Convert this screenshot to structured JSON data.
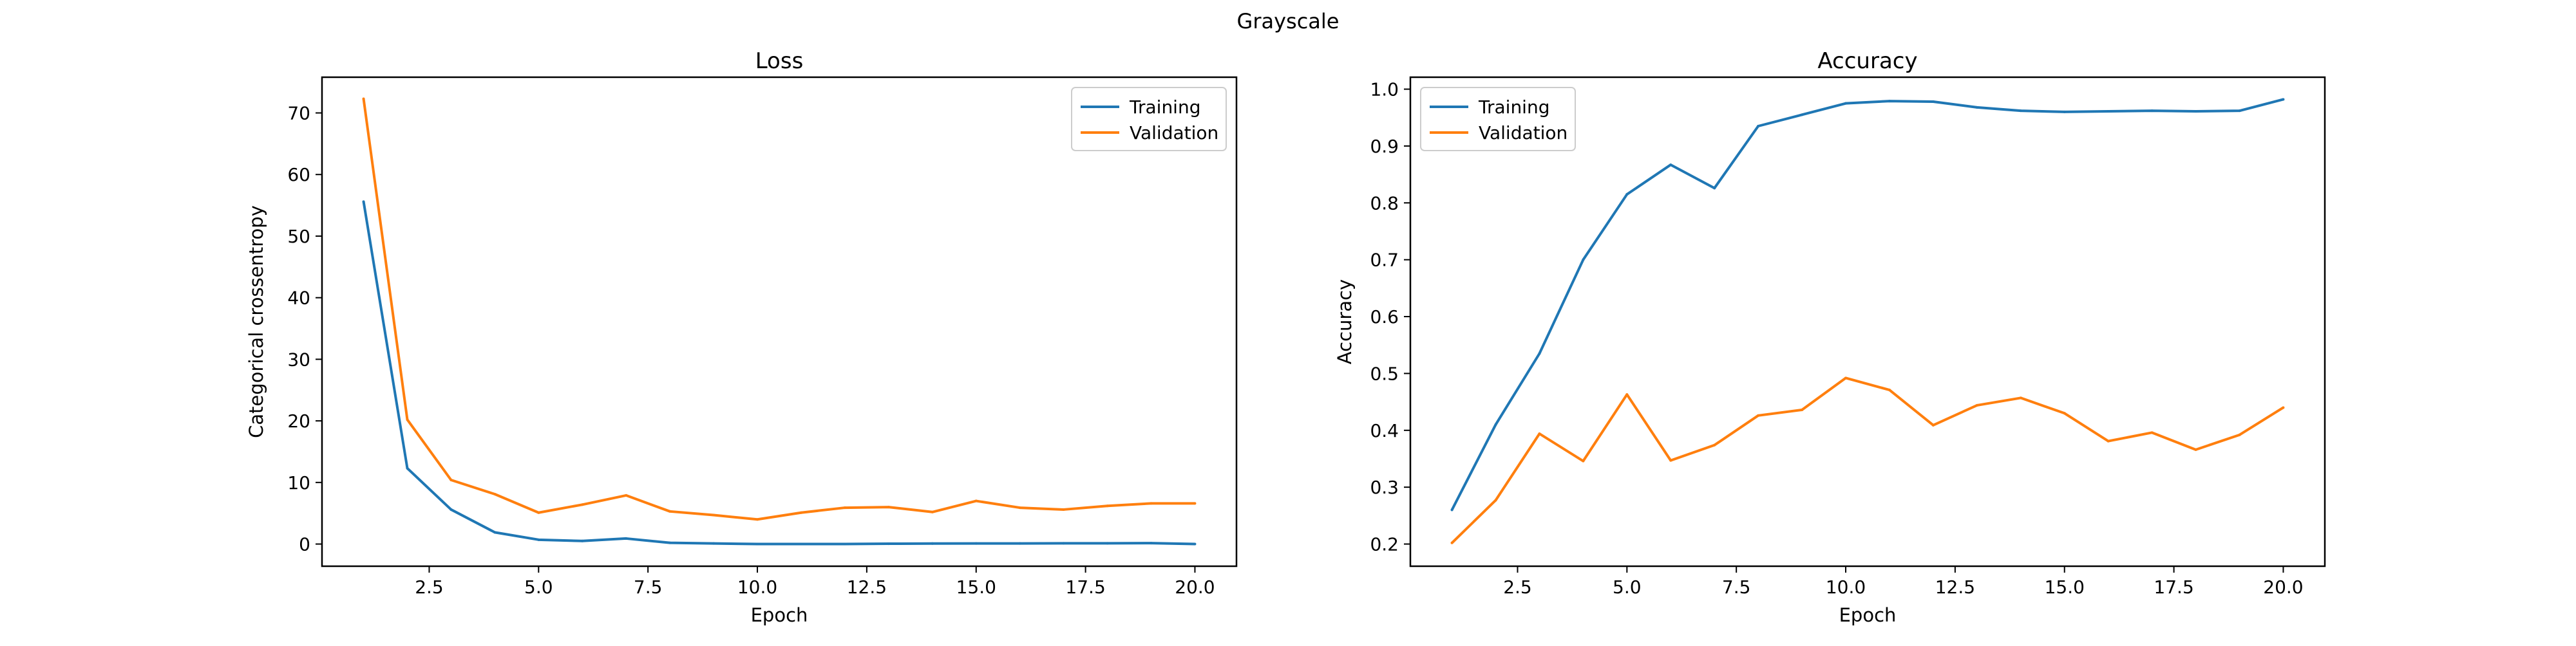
{
  "figure": {
    "title": "Grayscale"
  },
  "chart_data": [
    {
      "type": "line",
      "title": "Loss",
      "xlabel": "Epoch",
      "ylabel": "Categorical crossentropy",
      "xlim": [
        0.05,
        20.95
      ],
      "ylim": [
        -3.6,
        75.8
      ],
      "xticks": [
        2.5,
        5.0,
        7.5,
        10.0,
        12.5,
        15.0,
        17.5,
        20.0
      ],
      "yticks": [
        0,
        10,
        20,
        30,
        40,
        50,
        60,
        70
      ],
      "ytick_labels": [
        "0",
        "10",
        "20",
        "30",
        "40",
        "50",
        "60",
        "70"
      ],
      "grid": false,
      "legend": "top-right",
      "x": [
        1,
        2,
        3,
        4,
        5,
        6,
        7,
        8,
        9,
        10,
        11,
        12,
        13,
        14,
        15,
        16,
        17,
        18,
        19,
        20
      ],
      "series": [
        {
          "name": "Training",
          "color": "#1f77b4",
          "values": [
            55.6,
            12.3,
            5.6,
            1.9,
            0.7,
            0.5,
            0.9,
            0.2,
            0.1,
            0.0,
            0.0,
            0.0,
            0.05,
            0.08,
            0.1,
            0.1,
            0.12,
            0.12,
            0.15,
            0.0
          ]
        },
        {
          "name": "Validation",
          "color": "#ff7f0e",
          "values": [
            72.3,
            20.2,
            10.4,
            8.1,
            5.1,
            6.4,
            7.9,
            5.3,
            4.7,
            4.0,
            5.1,
            5.9,
            6.0,
            5.2,
            7.0,
            5.9,
            5.6,
            6.2,
            6.6,
            6.6
          ]
        }
      ]
    },
    {
      "type": "line",
      "title": "Accuracy",
      "xlabel": "Epoch",
      "ylabel": "Accuracy",
      "xlim": [
        0.05,
        20.95
      ],
      "ylim": [
        0.161,
        1.021
      ],
      "xticks": [
        2.5,
        5.0,
        7.5,
        10.0,
        12.5,
        15.0,
        17.5,
        20.0
      ],
      "yticks": [
        0.2,
        0.3,
        0.4,
        0.5,
        0.6,
        0.7,
        0.8,
        0.9,
        1.0
      ],
      "ytick_labels": [
        "0.2",
        "0.3",
        "0.4",
        "0.5",
        "0.6",
        "0.7",
        "0.8",
        "0.9",
        "1.0"
      ],
      "grid": false,
      "legend": "top-left",
      "x": [
        1,
        2,
        3,
        4,
        5,
        6,
        7,
        8,
        9,
        10,
        11,
        12,
        13,
        14,
        15,
        16,
        17,
        18,
        19,
        20
      ],
      "series": [
        {
          "name": "Training",
          "color": "#1f77b4",
          "values": [
            0.26,
            0.41,
            0.535,
            0.7,
            0.815,
            0.867,
            0.826,
            0.935,
            0.955,
            0.975,
            0.979,
            0.978,
            0.968,
            0.962,
            0.96,
            0.961,
            0.962,
            0.961,
            0.962,
            0.982
          ]
        },
        {
          "name": "Validation",
          "color": "#ff7f0e",
          "values": [
            0.202,
            0.277,
            0.394,
            0.346,
            0.463,
            0.347,
            0.374,
            0.426,
            0.436,
            0.492,
            0.471,
            0.409,
            0.444,
            0.457,
            0.43,
            0.381,
            0.396,
            0.366,
            0.392,
            0.44
          ]
        }
      ]
    }
  ]
}
